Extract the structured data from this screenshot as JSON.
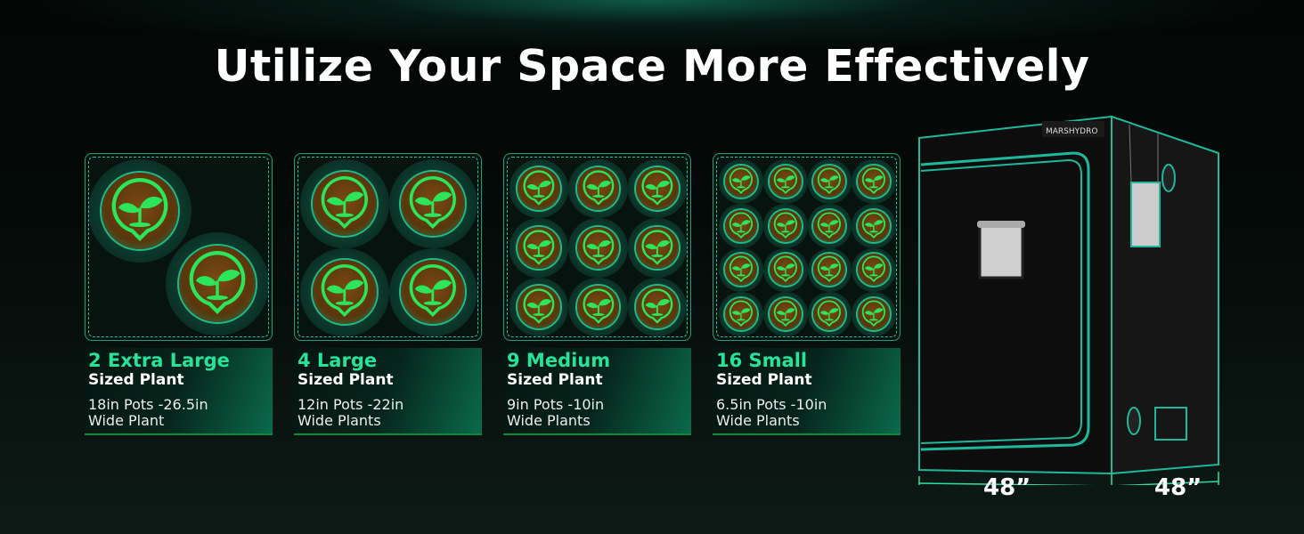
{
  "title": "Utilize Your Space More Effectively",
  "layouts": [
    {
      "count": 2,
      "head": "2 Extra Large",
      "sub": "Sized Plant",
      "desc1": "18in Pots -26.5in",
      "desc2": "Wide Plant"
    },
    {
      "count": 4,
      "head": "4 Large",
      "sub": "Sized Plant",
      "desc1": "12in Pots -22in",
      "desc2": "Wide Plants"
    },
    {
      "count": 9,
      "head": "9 Medium",
      "sub": "Sized Plant",
      "desc1": "9in Pots -10in",
      "desc2": "Wide Plants"
    },
    {
      "count": 16,
      "head": "16 Small",
      "sub": "Sized Plant",
      "desc1": "6.5in Pots -10in",
      "desc2": "Wide Plants"
    }
  ],
  "tent": {
    "brand": "MARSHYDRO",
    "width": "48”",
    "depth": "48”"
  },
  "colors": {
    "accent": "#27e39a",
    "trim": "#1fb89a",
    "soil": "#6b3f0f"
  }
}
